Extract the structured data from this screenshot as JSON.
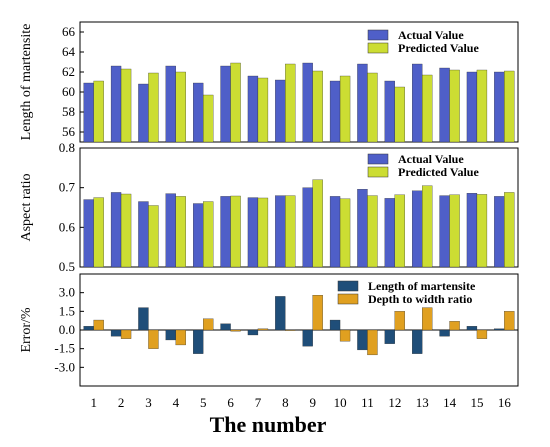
{
  "chart_data": [
    {
      "type": "bar",
      "ylabel": "Length of martensite",
      "ylim": [
        55,
        67
      ],
      "yticks": [
        56,
        58,
        60,
        62,
        64,
        66
      ],
      "categories": [
        "1",
        "2",
        "3",
        "4",
        "5",
        "6",
        "7",
        "8",
        "9",
        "10",
        "11",
        "12",
        "13",
        "14",
        "15",
        "16"
      ],
      "series": [
        {
          "name": "Actual Value",
          "color": "#4f5fc8",
          "values": [
            60.9,
            62.6,
            60.8,
            62.6,
            60.9,
            62.6,
            61.6,
            61.2,
            62.9,
            61.1,
            62.8,
            61.1,
            62.8,
            62.4,
            62.0,
            62.0
          ]
        },
        {
          "name": "Predicted Value",
          "color": "#ccdd33",
          "values": [
            61.1,
            62.3,
            61.9,
            62.0,
            59.7,
            62.9,
            61.4,
            62.8,
            62.1,
            61.6,
            61.9,
            60.5,
            61.7,
            62.2,
            62.2,
            62.1
          ]
        }
      ],
      "legend": "top-right"
    },
    {
      "type": "bar",
      "ylabel": "Aspect ratio",
      "ylim": [
        0.5,
        0.8
      ],
      "yticks": [
        0.5,
        0.6,
        0.7,
        0.8
      ],
      "categories": [
        "1",
        "2",
        "3",
        "4",
        "5",
        "6",
        "7",
        "8",
        "9",
        "10",
        "11",
        "12",
        "13",
        "14",
        "15",
        "16"
      ],
      "series": [
        {
          "name": "Actual Value",
          "color": "#4f5fc8",
          "values": [
            0.67,
            0.688,
            0.665,
            0.685,
            0.66,
            0.678,
            0.675,
            0.68,
            0.7,
            0.678,
            0.696,
            0.673,
            0.692,
            0.68,
            0.686,
            0.678
          ]
        },
        {
          "name": "Predicted Value",
          "color": "#ccdd33",
          "values": [
            0.675,
            0.684,
            0.655,
            0.678,
            0.665,
            0.679,
            0.674,
            0.68,
            0.72,
            0.672,
            0.68,
            0.682,
            0.705,
            0.682,
            0.683,
            0.688
          ]
        }
      ],
      "legend": "top-right"
    },
    {
      "type": "bar",
      "ylabel": "Error/%",
      "xlabel": "The number",
      "ylim": [
        -4.5,
        4.5
      ],
      "yticks": [
        -3.0,
        -1.5,
        0.0,
        1.5,
        3.0
      ],
      "ytick_labels": [
        "-3.0",
        "-1.5",
        "0.0",
        "1.5",
        "3.0"
      ],
      "categories": [
        "1",
        "2",
        "3",
        "4",
        "5",
        "6",
        "7",
        "8",
        "9",
        "10",
        "11",
        "12",
        "13",
        "14",
        "15",
        "16"
      ],
      "series": [
        {
          "name": "Length of martensite",
          "color": "#1f4e79",
          "values": [
            0.3,
            -0.5,
            1.8,
            -0.8,
            -1.9,
            0.5,
            -0.4,
            2.7,
            -1.3,
            0.8,
            -1.6,
            -1.1,
            -1.9,
            -0.5,
            0.3,
            0.1
          ]
        },
        {
          "name": "Depth to width ratio",
          "color": "#e0a020",
          "values": [
            0.8,
            -0.7,
            -1.5,
            -1.2,
            0.9,
            -0.1,
            0.1,
            0.0,
            2.8,
            -0.9,
            -2.0,
            1.5,
            1.8,
            0.7,
            -0.7,
            1.5
          ]
        }
      ],
      "legend": "top-right"
    }
  ]
}
